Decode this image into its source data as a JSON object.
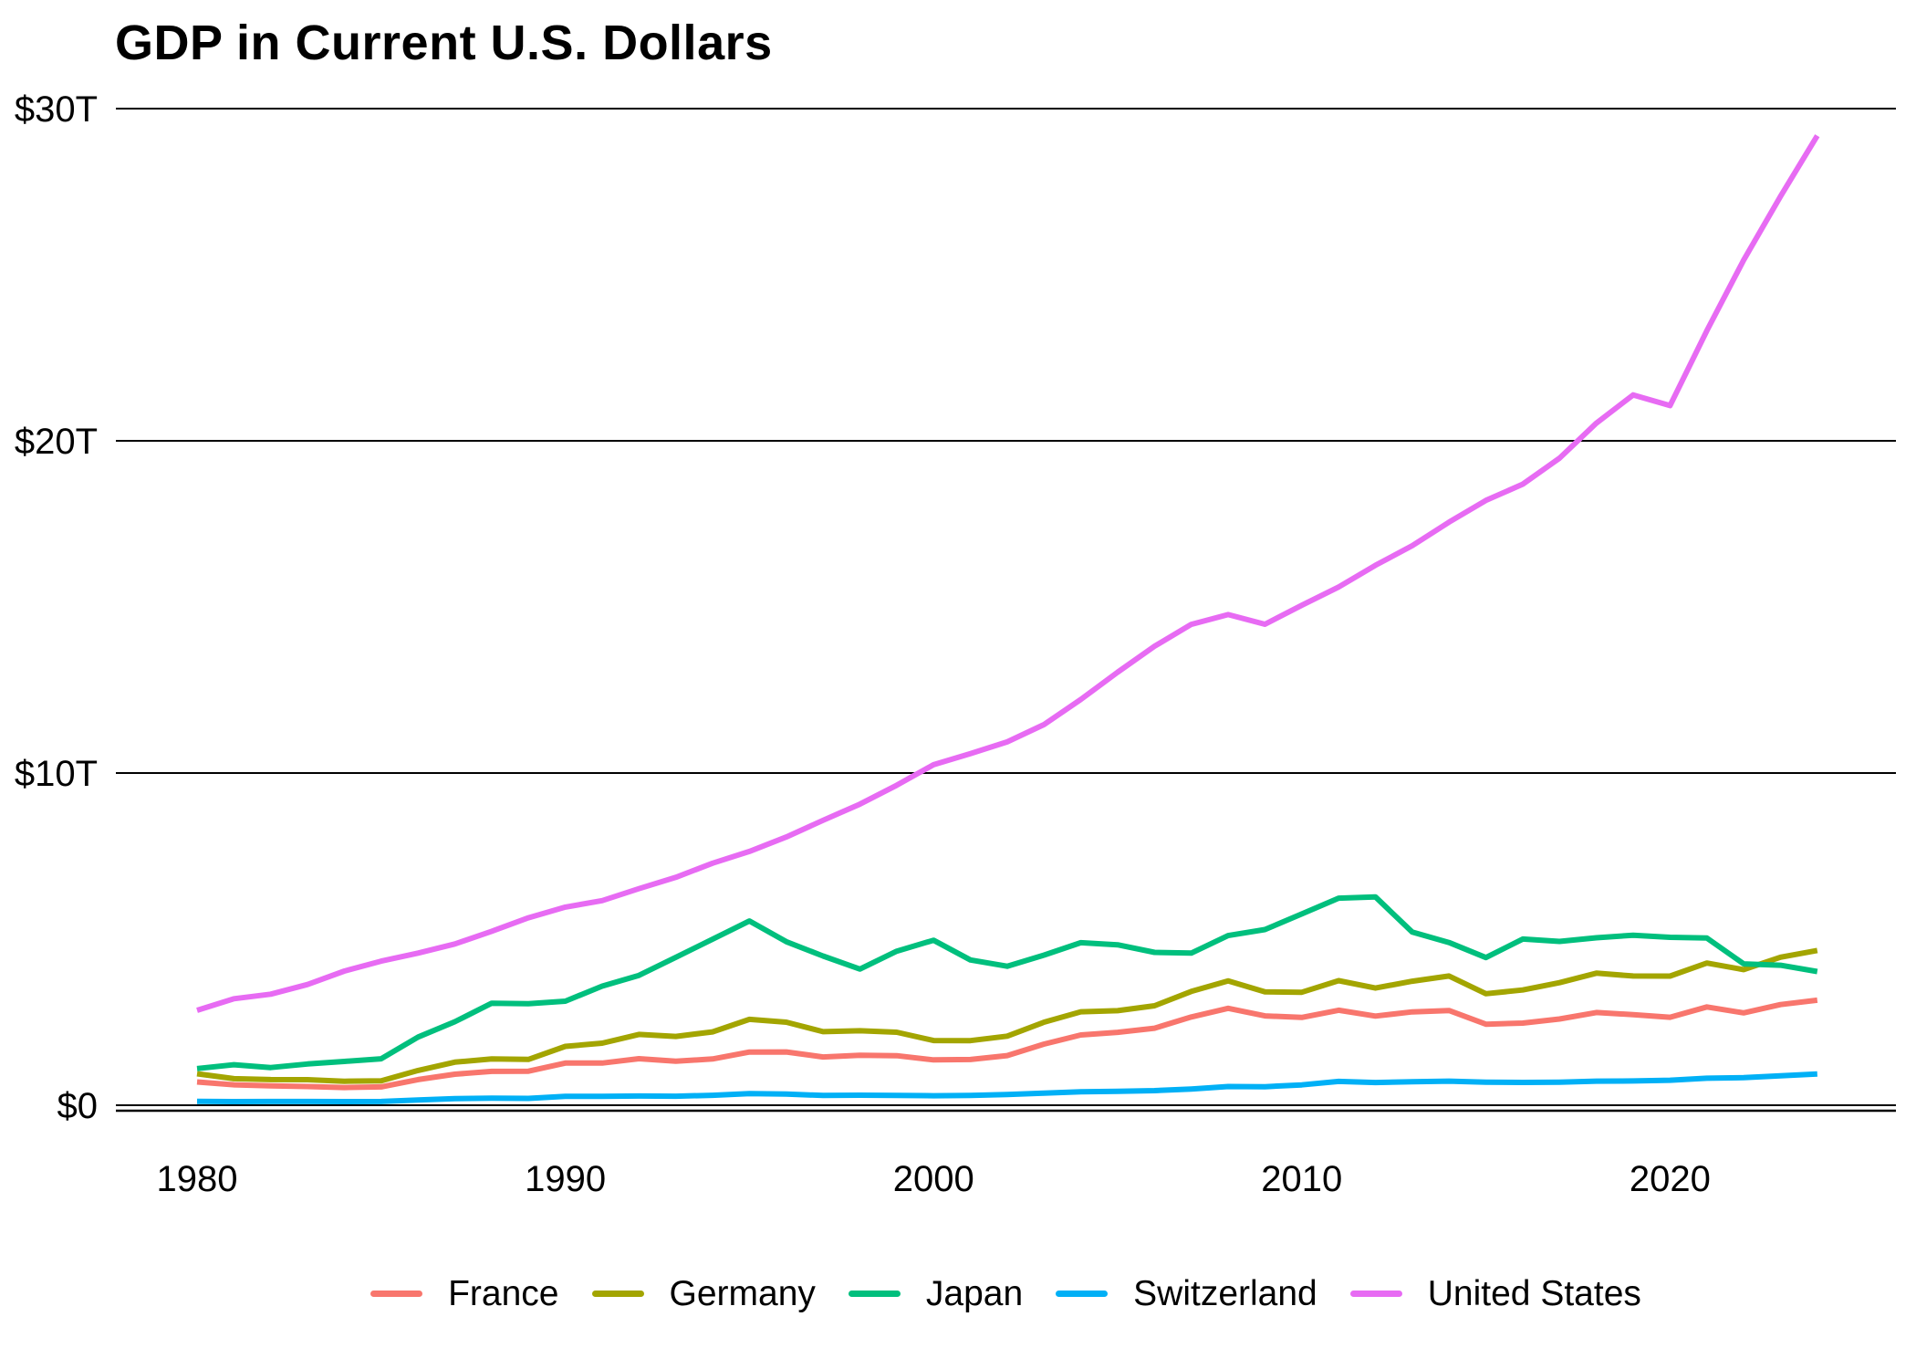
{
  "title": "GDP in Current U.S. Dollars",
  "chart_data": {
    "type": "line",
    "title": "GDP in Current U.S. Dollars",
    "units": "trillions of current U.S. dollars",
    "xlabel": "",
    "ylabel": "",
    "ylim": [
      0,
      30
    ],
    "grid": "horizontal",
    "legend_position": "bottom",
    "background_color": "#ffffff",
    "grid_color": "#000000",
    "axis_color": "#000000",
    "yticks": [
      {
        "label": "$0",
        "value": 0
      },
      {
        "label": "$10T",
        "value": 10
      },
      {
        "label": "$20T",
        "value": 20
      },
      {
        "label": "$30T",
        "value": 30
      }
    ],
    "xticks": [
      {
        "label": "1980",
        "value": 1980
      },
      {
        "label": "1990",
        "value": 1990
      },
      {
        "label": "2000",
        "value": 2000
      },
      {
        "label": "2010",
        "value": 2010
      },
      {
        "label": "2020",
        "value": 2020
      }
    ],
    "years": [
      1980,
      1981,
      1982,
      1983,
      1984,
      1985,
      1986,
      1987,
      1988,
      1989,
      1990,
      1991,
      1992,
      1993,
      1994,
      1995,
      1996,
      1997,
      1998,
      1999,
      2000,
      2001,
      2002,
      2003,
      2004,
      2005,
      2006,
      2007,
      2008,
      2009,
      2010,
      2011,
      2012,
      2013,
      2014,
      2015,
      2016,
      2017,
      2018,
      2019,
      2020,
      2021,
      2022,
      2023,
      2024
    ],
    "series": [
      {
        "name": "France",
        "color": "#F8766D",
        "values": [
          0.701,
          0.616,
          0.584,
          0.563,
          0.532,
          0.553,
          0.771,
          0.934,
          1.019,
          1.025,
          1.269,
          1.269,
          1.401,
          1.323,
          1.394,
          1.601,
          1.605,
          1.453,
          1.503,
          1.493,
          1.366,
          1.377,
          1.494,
          1.84,
          2.116,
          2.196,
          2.32,
          2.657,
          2.918,
          2.69,
          2.642,
          2.861,
          2.683,
          2.811,
          2.852,
          2.439,
          2.472,
          2.595,
          2.79,
          2.729,
          2.647,
          2.959,
          2.78,
          3.031,
          3.162
        ]
      },
      {
        "name": "Germany",
        "color": "#A3A500",
        "values": [
          0.947,
          0.8,
          0.771,
          0.77,
          0.723,
          0.733,
          1.047,
          1.297,
          1.395,
          1.379,
          1.772,
          1.869,
          2.132,
          2.072,
          2.209,
          2.585,
          2.499,
          2.213,
          2.243,
          2.199,
          1.948,
          1.946,
          2.079,
          2.501,
          2.814,
          2.846,
          2.995,
          3.425,
          3.745,
          3.411,
          3.4,
          3.749,
          3.527,
          3.733,
          3.889,
          3.357,
          3.469,
          3.69,
          3.975,
          3.889,
          3.887,
          4.279,
          4.082,
          4.457,
          4.66
        ]
      },
      {
        "name": "Japan",
        "color": "#00BF7D",
        "values": [
          1.105,
          1.219,
          1.134,
          1.243,
          1.318,
          1.398,
          2.051,
          2.514,
          3.072,
          3.054,
          3.133,
          3.584,
          3.908,
          4.454,
          4.998,
          5.546,
          4.924,
          4.493,
          4.099,
          4.636,
          4.968,
          4.374,
          4.183,
          4.519,
          4.893,
          4.831,
          4.601,
          4.579,
          5.106,
          5.289,
          5.759,
          6.233,
          6.272,
          5.212,
          4.897,
          4.444,
          5.004,
          4.931,
          5.041,
          5.118,
          5.056,
          5.034,
          4.256,
          4.213,
          4.026
        ]
      },
      {
        "name": "Switzerland",
        "color": "#00B0F6",
        "values": [
          0.118,
          0.11,
          0.113,
          0.113,
          0.109,
          0.112,
          0.158,
          0.198,
          0.212,
          0.205,
          0.266,
          0.269,
          0.277,
          0.272,
          0.3,
          0.349,
          0.337,
          0.293,
          0.302,
          0.298,
          0.286,
          0.295,
          0.323,
          0.362,
          0.403,
          0.417,
          0.439,
          0.49,
          0.564,
          0.559,
          0.613,
          0.718,
          0.684,
          0.707,
          0.725,
          0.694,
          0.687,
          0.695,
          0.726,
          0.732,
          0.752,
          0.813,
          0.829,
          0.885,
          0.942
        ]
      },
      {
        "name": "United States",
        "color": "#E76BF3",
        "values": [
          2.857,
          3.207,
          3.344,
          3.634,
          4.038,
          4.339,
          4.58,
          4.855,
          5.236,
          5.642,
          5.963,
          6.158,
          6.52,
          6.859,
          7.287,
          7.64,
          8.073,
          8.578,
          9.063,
          9.631,
          10.251,
          10.582,
          10.936,
          11.458,
          12.214,
          13.037,
          13.816,
          14.474,
          14.77,
          14.478,
          15.049,
          15.6,
          16.254,
          16.843,
          17.551,
          18.206,
          18.695,
          19.477,
          20.533,
          21.381,
          21.06,
          23.315,
          25.44,
          27.361,
          29.185
        ]
      }
    ]
  }
}
